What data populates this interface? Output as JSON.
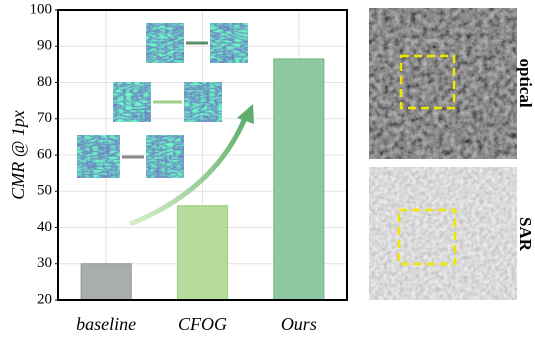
{
  "chart_data": {
    "type": "bar",
    "y_label": "CMR @ 1px",
    "categories": [
      "baseline",
      "CFOG",
      "Ours"
    ],
    "values": [
      30,
      46,
      86.5
    ],
    "colors": [
      "#a9aeab",
      "#b5dc9a",
      "#8ec8a0"
    ],
    "edge_colors": [
      "#8f9591",
      "#9ccd7c",
      "#6fb487"
    ],
    "ylim": [
      20,
      100
    ],
    "yticks": [
      20,
      30,
      40,
      50,
      60,
      70,
      80,
      90,
      100
    ],
    "grid": true
  },
  "images": [
    {
      "label": "optical"
    },
    {
      "label": "SAR"
    }
  ]
}
